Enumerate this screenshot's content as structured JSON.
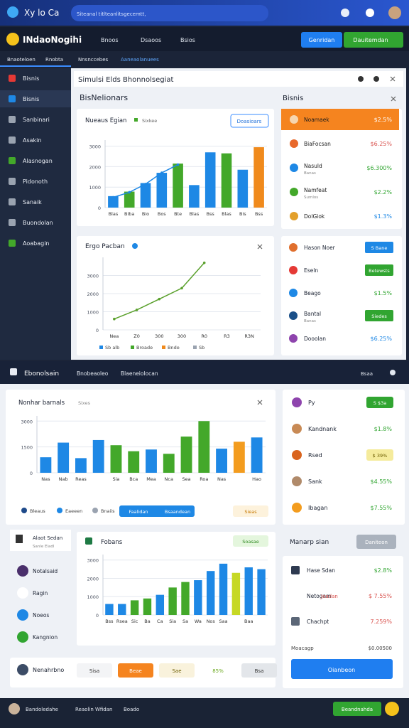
{
  "topbar": {
    "brand": "Xy lo Ca",
    "search": "Siteanal titlteanlitsgecemtt,"
  },
  "navbar": {
    "logo": "INdaoNogihi",
    "menu": [
      "Bnoos",
      "Dsaoos",
      "Bsios"
    ],
    "buttons": [
      "Genridan",
      "Dauitemdan"
    ]
  },
  "tabs": [
    "Bnaoteloen",
    "Rnobta",
    "Nnsnccebes",
    "Aaneaolanuees"
  ],
  "sidebar": [
    "Bisnis",
    "Bisnis",
    "Sanbinari",
    "Asakin",
    "Alasnogan",
    "Pidonoth",
    "Sanaik",
    "Buondolan",
    "Aoabagin"
  ],
  "panel": {
    "title": "Simulsi Elds Bhonnolsegiat",
    "subtitle": "BisNelionars",
    "side_title": "Bisnis"
  },
  "side_list": [
    {
      "name": "Noamaek",
      "value": "$2.5%"
    },
    {
      "name": "BiaFocsan",
      "value": "$6.25%"
    },
    {
      "name": "Nasuld",
      "sub": "Banas",
      "value": "$6.300%"
    },
    {
      "name": "Namfeat",
      "sub": "Sumlos",
      "value": "$2.2%"
    },
    {
      "name": "DolGiok",
      "value": "$1.3%"
    }
  ],
  "side_list2": [
    {
      "name": "Hason Noer",
      "badge": "S Bane"
    },
    {
      "name": "Eseln",
      "badge": "Betewsts"
    },
    {
      "name": "Beago",
      "value": "$1.5%"
    },
    {
      "name": "Bantal",
      "sub": "Banas",
      "badge": "Siedes"
    },
    {
      "name": "Dooolan",
      "value": "$6.25%"
    }
  ],
  "section2": {
    "title": "Ebonolsain",
    "links": [
      "Bnobeaoleo",
      "Blaeneiolocan"
    ],
    "right": "Bsaa"
  },
  "chart3_extra": {
    "legend": [
      "Bleaus",
      "Eaeeen",
      "Bnaiis"
    ],
    "chips": [
      "Faalidan",
      "Bsaandean",
      "Sieas"
    ]
  },
  "right_list3": [
    {
      "name": "Py",
      "badge": "S $3a"
    },
    {
      "name": "Kandnank",
      "value": "$1.8%"
    },
    {
      "name": "Rsed",
      "badge": "$ 39%"
    },
    {
      "name": "Sank",
      "value": "$4.55%"
    },
    {
      "name": "Ibagan",
      "value": "$7.55%"
    }
  ],
  "left_list4": {
    "title": "Alaot Sedan",
    "sub": "Sanle Eladl",
    "items": [
      "Notalsaid",
      "Ragin",
      "Noeos",
      "Kangnion"
    ]
  },
  "right_list4": {
    "title": "Manarp sian",
    "button": "Daniteon",
    "items": [
      {
        "name": "Hase Sdan",
        "value": "$2.8%"
      },
      {
        "name": "Netogam",
        "sub": "Joadan",
        "value": "$ 7.55%"
      },
      {
        "name": "Chachpt",
        "value": "7.259%"
      }
    ],
    "footer_label": "Moacagp",
    "footer_value": "$0.00500",
    "cta": "Oianbeon"
  },
  "strip": {
    "name": "Nenahrbno",
    "chips": [
      "Sisa",
      "Beae",
      "Sae",
      "85%",
      "Bsa"
    ]
  },
  "bottombar": {
    "items": [
      "Bandoledahe",
      "Reaolin Wfidan",
      "Boado"
    ],
    "button": "Beandnahda"
  },
  "chart_data": [
    {
      "type": "bar",
      "title": "Nueaus Egian",
      "legend": "Sixkee",
      "button": "Doasioars",
      "categories": [
        "Blas",
        "Biba",
        "Bio",
        "Bos",
        "Bte",
        "Blas",
        "Bss",
        "Blas",
        "Bis",
        "Bss"
      ],
      "values": [
        560,
        780,
        1200,
        1700,
        2150,
        1100,
        2700,
        2650,
        1850,
        2950
      ],
      "colors": [
        "#1e88e5",
        "#43a82a",
        "#1e88e5",
        "#1e88e5",
        "#43a82a",
        "#1e88e5",
        "#1e88e5",
        "#43a82a",
        "#1e88e5",
        "#f08a1c"
      ],
      "line": {
        "color": "#1e88e5",
        "values": [
          500,
          750,
          1150,
          1700,
          2100,
          null,
          null,
          null,
          null,
          null
        ]
      },
      "ylim": [
        0,
        3300
      ],
      "yticks": [
        0,
        1000,
        2000,
        3000
      ],
      "grid": true
    },
    {
      "type": "line",
      "title": "Ergo Pacban",
      "color": "#5aa02c",
      "categories": [
        "Nea",
        "Z0",
        "300",
        "300",
        "R0",
        "R3",
        "R3N"
      ],
      "values": [
        600,
        1100,
        1700,
        2300,
        3700,
        null,
        null
      ],
      "legend": [
        {
          "name": "Sb alb",
          "color": "#1e88e5"
        },
        {
          "name": "Broade",
          "color": "#43a82a"
        },
        {
          "name": "Bnde",
          "color": "#f08a1c"
        },
        {
          "name": "Sb",
          "color": "#9aa3b0"
        }
      ],
      "ylim": [
        0,
        4000
      ],
      "yticks": [
        0,
        1000,
        2000,
        3000
      ],
      "grid": true
    },
    {
      "type": "bar",
      "title": "Nonhar barnals",
      "legend": "Sixes",
      "categories": [
        "Nas",
        "Nab",
        "Reas",
        null,
        "Sia",
        "Bca",
        "Mea",
        "Nca",
        "Sea",
        "Roa",
        "Nas",
        null,
        "Hao"
      ],
      "values": [
        900,
        1750,
        850,
        1900,
        1600,
        1250,
        1350,
        1100,
        2100,
        3000,
        1400,
        1800,
        2050
      ],
      "colors": [
        "#1e88e5",
        "#1e88e5",
        "#1e88e5",
        "#1e88e5",
        "#43a82a",
        "#43a82a",
        "#1e88e5",
        "#43a82a",
        "#43a82a",
        "#43a82a",
        "#1e88e5",
        "#f39c1e",
        "#1e88e5"
      ],
      "ylim": [
        0,
        3300
      ],
      "yticks": [
        0,
        1500,
        3000
      ],
      "grid": true
    },
    {
      "type": "bar",
      "title": "Fobans",
      "button": "Soasae",
      "categories": [
        "Bss",
        "Rsea",
        "Sic",
        "Ba",
        "Ca",
        "Sia",
        "Sa",
        "Wa",
        "Nos",
        "Saa",
        null,
        "Baa",
        null
      ],
      "values": [
        600,
        600,
        800,
        900,
        1100,
        1500,
        1800,
        1900,
        2400,
        2800,
        2300,
        2600,
        2500
      ],
      "colors": [
        "#1e88e5",
        "#1e88e5",
        "#43a82a",
        "#43a82a",
        "#1e88e5",
        "#43a82a",
        "#43a82a",
        "#1e88e5",
        "#1e88e5",
        "#1e88e5",
        "#c6d824",
        "#1e88e5",
        "#1e88e5"
      ],
      "ylim": [
        0,
        3300
      ],
      "yticks": [
        0,
        1000,
        2000,
        3000
      ],
      "grid": true
    }
  ]
}
